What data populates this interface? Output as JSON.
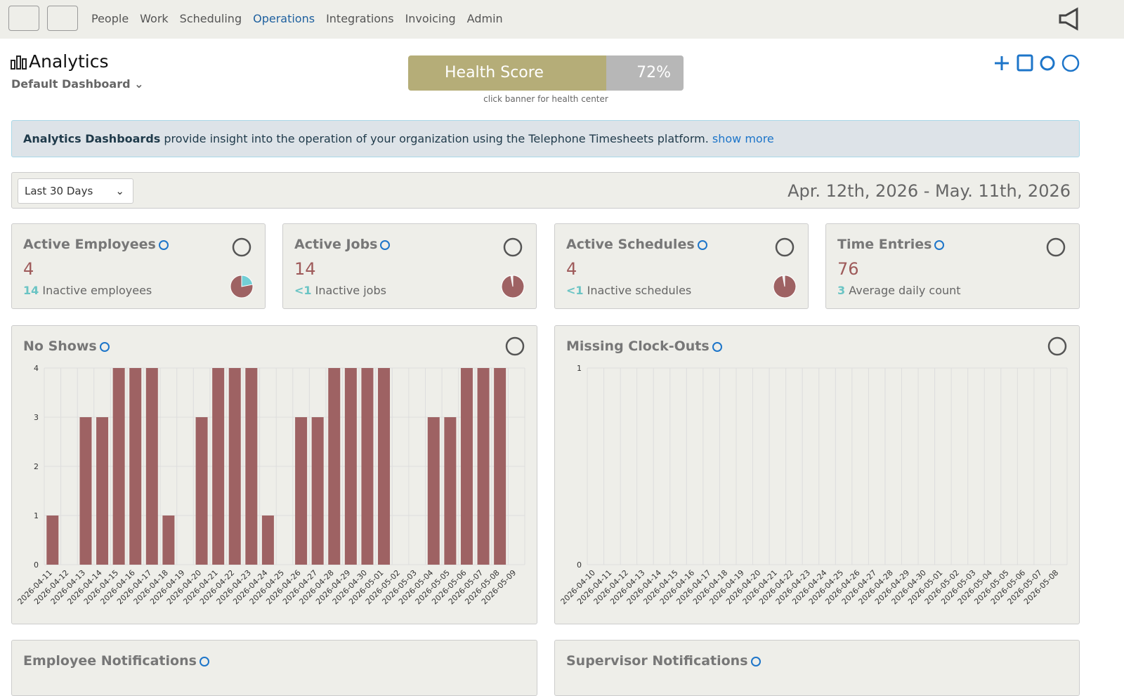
{
  "nav": {
    "items": [
      "People",
      "Work",
      "Scheduling",
      "Operations",
      "Integrations",
      "Invoicing",
      "Admin"
    ]
  },
  "header": {
    "title": "Analytics",
    "dashboard": "Default Dashboard",
    "health_label": "Health Score",
    "health_value": "72%",
    "health_hint": "click banner for health center"
  },
  "info": {
    "bold": "Analytics Dashboards",
    "text": "provide insight into the operation of your organization using the Telephone Timesheets platform.",
    "link": "show more"
  },
  "range": {
    "select": "Last 30 Days",
    "dates": "Apr. 12th, 2026 - May. 11th, 2026"
  },
  "cards": [
    {
      "title": "Active Employees",
      "value": "4",
      "sub_value": "14",
      "sub_label": "Inactive employees"
    },
    {
      "title": "Active Jobs",
      "value": "14",
      "sub_value": "<1",
      "sub_label": "Inactive jobs"
    },
    {
      "title": "Active Schedules",
      "value": "4",
      "sub_value": "<1",
      "sub_label": "Inactive schedules"
    },
    {
      "title": "Time Entries",
      "value": "76",
      "sub_value": "3",
      "sub_label": "Average daily count"
    }
  ],
  "panels": [
    {
      "title": "Employee Notifications"
    },
    {
      "title": "Supervisor Notifications"
    }
  ],
  "chart_data": [
    {
      "type": "bar",
      "title": "No Shows",
      "color": "#9e6263",
      "grid": true,
      "ylim": [
        0,
        4
      ],
      "yticks": [
        0,
        1,
        2,
        3,
        4
      ],
      "categories": [
        "2026-04-11",
        "2026-04-12",
        "2026-04-13",
        "2026-04-14",
        "2026-04-15",
        "2026-04-16",
        "2026-04-17",
        "2026-04-18",
        "2026-04-19",
        "2026-04-20",
        "2026-04-21",
        "2026-04-22",
        "2026-04-23",
        "2026-04-24",
        "2026-04-25",
        "2026-04-26",
        "2026-04-27",
        "2026-04-28",
        "2026-04-29",
        "2026-04-30",
        "2026-05-01",
        "2026-05-02",
        "2026-05-03",
        "2026-05-04",
        "2026-05-05",
        "2026-05-06",
        "2026-05-07",
        "2026-05-08",
        "2026-05-09"
      ],
      "values": [
        1,
        0,
        3,
        3,
        4,
        4,
        4,
        1,
        0,
        3,
        4,
        4,
        4,
        1,
        0,
        3,
        3,
        4,
        4,
        4,
        4,
        0,
        0,
        3,
        3,
        4,
        4,
        4,
        0
      ]
    },
    {
      "type": "bar",
      "title": "Missing Clock-Outs",
      "color": "#9e6263",
      "grid": true,
      "ylim": [
        0,
        1
      ],
      "yticks": [
        0,
        1
      ],
      "categories": [
        "2026-04-10",
        "2026-04-11",
        "2026-04-12",
        "2026-04-13",
        "2026-04-14",
        "2026-04-15",
        "2026-04-16",
        "2026-04-17",
        "2026-04-18",
        "2026-04-19",
        "2026-04-20",
        "2026-04-21",
        "2026-04-22",
        "2026-04-23",
        "2026-04-24",
        "2026-04-25",
        "2026-04-26",
        "2026-04-27",
        "2026-04-28",
        "2026-04-29",
        "2026-04-30",
        "2026-05-01",
        "2026-05-02",
        "2026-05-03",
        "2026-05-04",
        "2026-05-05",
        "2026-05-06",
        "2026-05-07",
        "2026-05-08"
      ],
      "values": [
        0,
        0,
        0,
        0,
        0,
        0,
        0,
        0,
        0,
        0,
        0,
        0,
        0,
        0,
        0,
        0,
        0,
        0,
        0,
        0,
        0,
        0,
        0,
        0,
        0,
        0,
        0,
        0,
        0
      ]
    }
  ]
}
